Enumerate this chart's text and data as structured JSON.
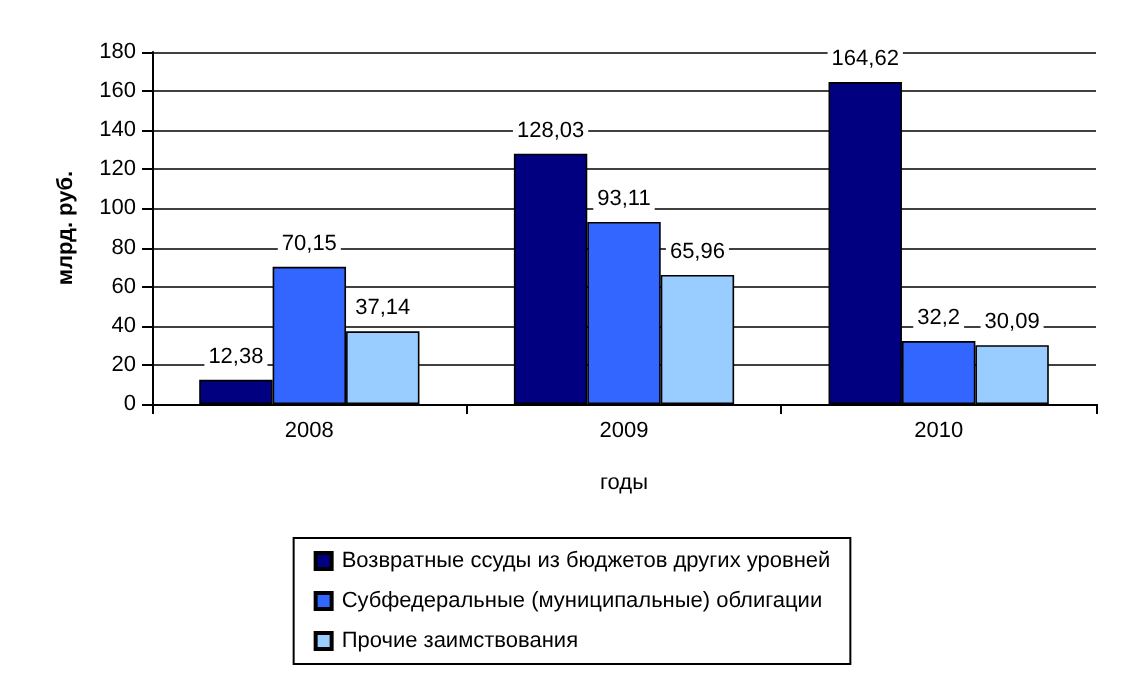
{
  "chart_data": {
    "type": "bar",
    "xlabel": "годы",
    "ylabel": "млрд. руб.",
    "categories": [
      "2008",
      "2009",
      "2010"
    ],
    "series": [
      {
        "name": "Возвратные ссуды из бюджетов других уровней",
        "color": "#000080",
        "values": [
          12.38,
          128.03,
          164.62
        ],
        "value_labels": [
          "12,38",
          "128,03",
          "164,62"
        ]
      },
      {
        "name": "Субфедеральные (муниципальные) облигации",
        "color": "#3366ff",
        "values": [
          70.15,
          93.11,
          32.2
        ],
        "value_labels": [
          "70,15",
          "93,11",
          "32,2"
        ]
      },
      {
        "name": "Прочие заимствования",
        "color": "#99ccff",
        "values": [
          37.14,
          65.96,
          30.09
        ],
        "value_labels": [
          "37,14",
          "65,96",
          "30,09"
        ]
      }
    ],
    "ylim": [
      0,
      180
    ],
    "yticks": [
      0,
      20,
      40,
      60,
      80,
      100,
      120,
      140,
      160,
      180
    ],
    "grid": "y",
    "legend": "bottom"
  }
}
